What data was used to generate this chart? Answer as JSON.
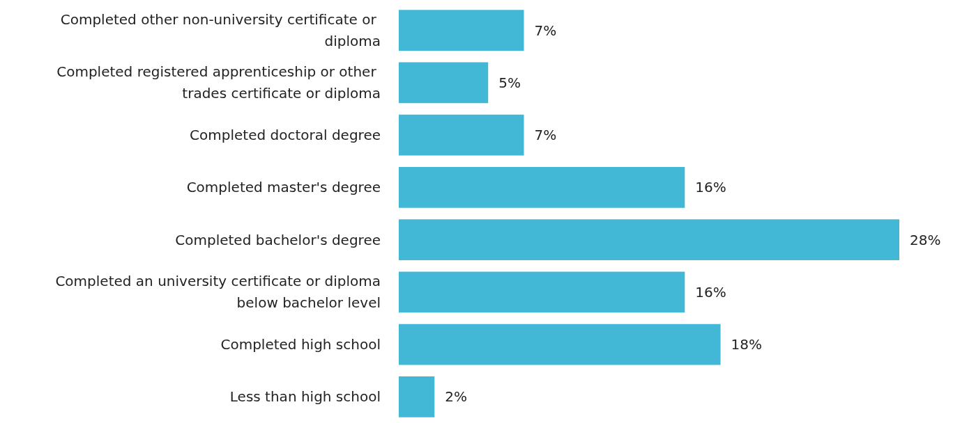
{
  "chart_data": {
    "type": "bar",
    "orientation": "horizontal",
    "categories": [
      "Completed other non-university certificate or diploma",
      "Completed registered apprenticeship or other trades certificate or diploma",
      "Completed doctoral degree",
      "Completed master's degree",
      "Completed bachelor's degree",
      "Completed an university certificate or diploma below bachelor level",
      "Completed high school",
      "Less than high school"
    ],
    "values": [
      7,
      5,
      7,
      16,
      28,
      16,
      18,
      2
    ],
    "value_labels": [
      "7%",
      "5%",
      "7%",
      "16%",
      "28%",
      "16%",
      "18%",
      "2%"
    ],
    "color": "#42b8d6"
  }
}
